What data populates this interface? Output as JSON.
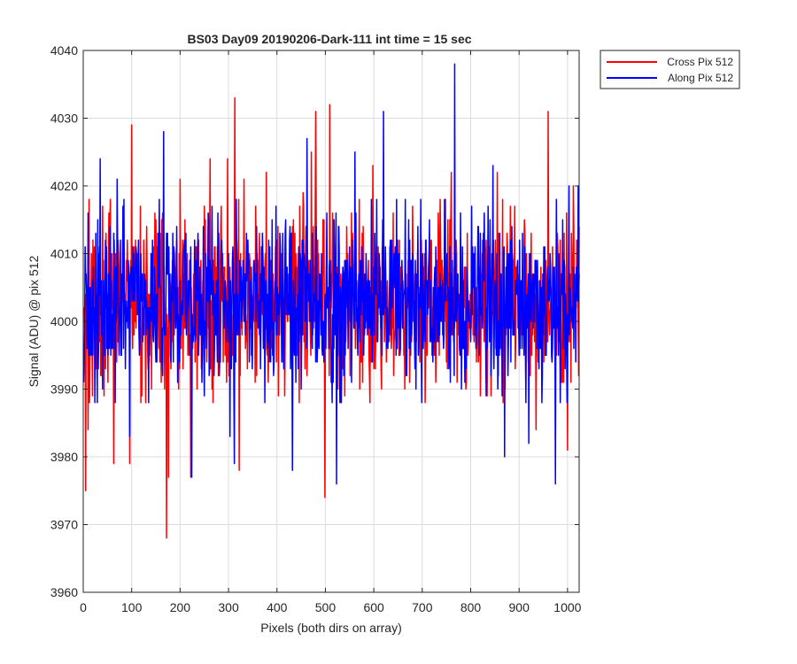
{
  "chart_data": {
    "type": "line",
    "title": "BS03 Day09 20190206-Dark-111 int time = 15 sec",
    "xlabel": "Pixels (both dirs on array)",
    "ylabel": "Signal (ADU) @ pix 512",
    "xlim": [
      0,
      1024
    ],
    "ylim": [
      3960,
      4040
    ],
    "xticks": [
      0,
      100,
      200,
      300,
      400,
      500,
      600,
      700,
      800,
      900,
      1000
    ],
    "yticks": [
      3960,
      3970,
      3980,
      3990,
      4000,
      4010,
      4020,
      4030,
      4040
    ],
    "grid": true,
    "legend_position": "top-right outside",
    "x_range": [
      1,
      1024
    ],
    "series": [
      {
        "name": "Cross Pix 512",
        "color": "#ff0000",
        "mean": 4003,
        "std": 6.5,
        "seed": 17,
        "values_by_x": {
          "5": 3975,
          "10": 3984,
          "12": 4018,
          "63": 3979,
          "96": 3979,
          "100": 4029,
          "150": 4015,
          "172": 3968,
          "176": 3977,
          "200": 4021,
          "222": 3977,
          "262": 4024,
          "298": 4024,
          "313": 4033,
          "322": 3978,
          "332": 4021,
          "378": 4022,
          "454": 4019,
          "471": 4025,
          "480": 4031,
          "499": 3974,
          "509": 4032,
          "598": 4023,
          "640": 4016,
          "680": 4017,
          "748": 4018,
          "760": 4022,
          "855": 4022,
          "935": 3984,
          "960": 4031,
          "1000": 3981,
          "1012": 4020
        }
      },
      {
        "name": "Along Pix 512",
        "color": "#0000ff",
        "mean": 4003,
        "std": 6.5,
        "seed": 91,
        "values_by_x": {
          "35": 4024,
          "70": 4021,
          "96": 3983,
          "166": 4028,
          "224": 3977,
          "303": 3983,
          "312": 3979,
          "432": 3978,
          "462": 4027,
          "523": 3976,
          "561": 4025,
          "620": 4031,
          "767": 4038,
          "846": 4023,
          "870": 3980,
          "920": 3982,
          "975": 3976,
          "1003": 4020,
          "1022": 4020
        }
      }
    ]
  }
}
